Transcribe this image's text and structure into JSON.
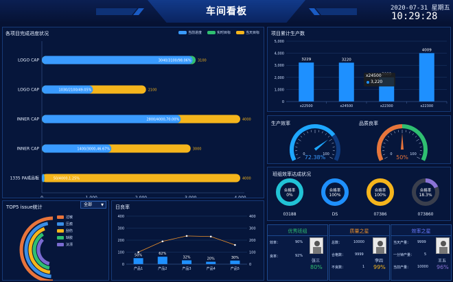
{
  "header": {
    "title": "车间看板",
    "date": "2020-07-31 星期五",
    "time": "10:29:28"
  },
  "progress_panel": {
    "title": "各项目完成进度状况",
    "legend": [
      "当前进度",
      "实时目标",
      "当天目标"
    ],
    "chart_data": {
      "type": "bar",
      "categories": [
        "LOGO CAP",
        "LOGO CAP",
        "INNER CAP",
        "INNER CAP",
        "1335 PA成品板"
      ],
      "series": [
        {
          "name": "当前进度",
          "values": [
            3040,
            1030,
            2800,
            1400,
            50
          ]
        },
        {
          "name": "实时目标",
          "values": [
            3100,
            1000,
            2800,
            1400,
            50
          ]
        },
        {
          "name": "当天目标",
          "values": [
            3100,
            2100,
            4000,
            3000,
            4000
          ]
        }
      ],
      "bar_labels": [
        "3040/3100/98.06%",
        "1030/2100/49.05%",
        "2800/4000,70.00%",
        "1400/3000,46.67%",
        "50/4000,1.25%"
      ],
      "target_labels": [
        "3100",
        "2100",
        "4000",
        "3000",
        "4000"
      ],
      "x_ticks": [
        "0",
        "1,000",
        "2,000",
        "3,000",
        "4,000"
      ],
      "xlim": [
        0,
        4000
      ]
    }
  },
  "production_panel": {
    "title": "项目累计生产数",
    "chart_data": {
      "type": "bar",
      "categories": [
        "x22500",
        "x24500",
        "x22300",
        "x22300"
      ],
      "values": [
        3229,
        3220,
        2009,
        4009
      ],
      "value_labels": [
        "3229",
        "3220",
        "2009",
        "4009"
      ],
      "y_ticks": [
        "0",
        "1,000",
        "2,000",
        "3,000",
        "4,000",
        "5,000"
      ],
      "ylim": [
        0,
        5000
      ]
    },
    "tooltip": {
      "title": "x24500",
      "value": "3,220"
    }
  },
  "gauges": {
    "efficiency": {
      "title": "生产效率",
      "value": 72.38,
      "label": "72.38%",
      "min": "0",
      "max": "100"
    },
    "quality": {
      "title": "品质良率",
      "value": 50,
      "label": "50%",
      "min": "0",
      "max": "100"
    }
  },
  "team_panel": {
    "title": "班组效率达成状况",
    "rings": [
      {
        "label": "合格率",
        "value_text": "0%",
        "value": 0,
        "name": "03188",
        "color": "#1fd1e6"
      },
      {
        "label": "合格率",
        "value_text": "100%",
        "value": 100,
        "name": "DS",
        "color": "#1e90ff"
      },
      {
        "label": "合格率",
        "value_text": "100%",
        "value": 100,
        "name": "07386",
        "color": "#f5b51c"
      },
      {
        "label": "合格率",
        "value_text": "18.3%",
        "value": 18.3,
        "name": "073860",
        "color": "#8a73d6"
      }
    ]
  },
  "issue_panel": {
    "title": "TOP5 issue统计",
    "select_value": "全部",
    "legend": [
      {
        "label": "过敏",
        "color": "#e8743b"
      },
      {
        "label": "压痕",
        "color": "#3a8ee6"
      },
      {
        "label": "刮伤",
        "color": "#f5b51c"
      },
      {
        "label": "缺胶",
        "color": "#2fbf71"
      },
      {
        "label": "汰漂",
        "color": "#7a6bd1"
      }
    ]
  },
  "yield_panel": {
    "title": "日良率",
    "chart_data": {
      "type": "bar",
      "categories": [
        "产品1",
        "产品2",
        "产品3",
        "产品4",
        "产品5"
      ],
      "values": [
        50,
        62,
        32,
        20,
        30
      ],
      "value_labels": [
        "50%",
        "62%",
        "32%",
        "20%",
        "30%"
      ],
      "line_values": [
        100,
        190,
        235,
        230,
        160
      ],
      "y_ticks": [
        "0",
        "100",
        "200",
        "300",
        "400"
      ],
      "y2_ticks": [
        "0",
        "100",
        "200",
        "300",
        "400"
      ],
      "ylim": [
        0,
        400
      ]
    }
  },
  "cards": [
    {
      "title": "优秀班组",
      "title_color": "#2fbf71",
      "rows": [
        {
          "k": "效率：",
          "v": "90%"
        },
        {
          "k": "良率：",
          "v": "92%"
        }
      ],
      "person": "张三",
      "percent": "80%",
      "percent_color": "#2fbf71"
    },
    {
      "title": "质量之星",
      "title_color": "#f0932b",
      "rows": [
        {
          "k": "总数：",
          "v": "10000"
        },
        {
          "k": "合格数：",
          "v": "9999"
        },
        {
          "k": "不良数：",
          "v": "1"
        }
      ],
      "person": "李四",
      "percent": "99%",
      "percent_color": "#f5b51c"
    },
    {
      "title": "效率之星",
      "title_color": "#6b7bff",
      "rows": [
        {
          "k": "当天产量：",
          "v": "9999"
        },
        {
          "k": "一分钟产量：",
          "v": "5"
        },
        {
          "k": "当前产量：",
          "v": "10000"
        }
      ],
      "person": "王五",
      "percent": "96%",
      "percent_color": "#8a73d6"
    }
  ]
}
